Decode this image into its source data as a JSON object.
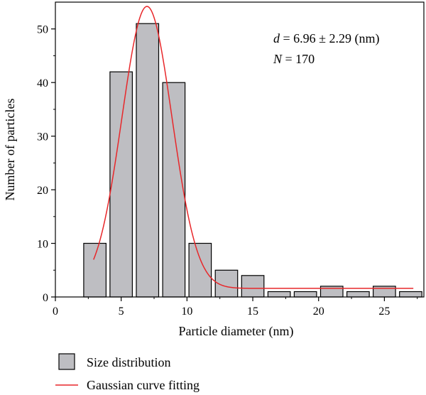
{
  "chart_data": {
    "type": "bar",
    "xlabel": "Particle diameter (nm)",
    "ylabel": "Number of particles",
    "xlim": [
      0,
      28
    ],
    "ylim": [
      0,
      55
    ],
    "xticks": [
      0,
      5,
      10,
      15,
      20,
      25
    ],
    "yticks": [
      0,
      10,
      20,
      30,
      40,
      50
    ],
    "grid": false,
    "legend_position": "bottom-left",
    "annotations": [
      {
        "text": "d = 6.96 ± 2.29 (nm)",
        "var": "d",
        "rest": " = 6.96 ± 2.29 (nm)"
      },
      {
        "text": "N = 170",
        "var": "N",
        "rest": " = 170"
      }
    ],
    "series": [
      {
        "name": "Size distribution",
        "type": "bar",
        "color": "#bebec2",
        "bin_width": 2,
        "x": [
          3,
          5,
          7,
          9,
          11,
          13,
          15,
          17,
          19,
          21,
          23,
          25,
          27
        ],
        "values": [
          10,
          42,
          51,
          40,
          10,
          5,
          4,
          1,
          1,
          2,
          1,
          2,
          1
        ]
      },
      {
        "name": "Gaussian curve fitting",
        "type": "line",
        "color": "#e8272a",
        "x_range": [
          2.9,
          27.2
        ],
        "baseline": 1.6,
        "amplitude": 52.6,
        "center": 6.96,
        "sigma": 1.9
      }
    ]
  }
}
